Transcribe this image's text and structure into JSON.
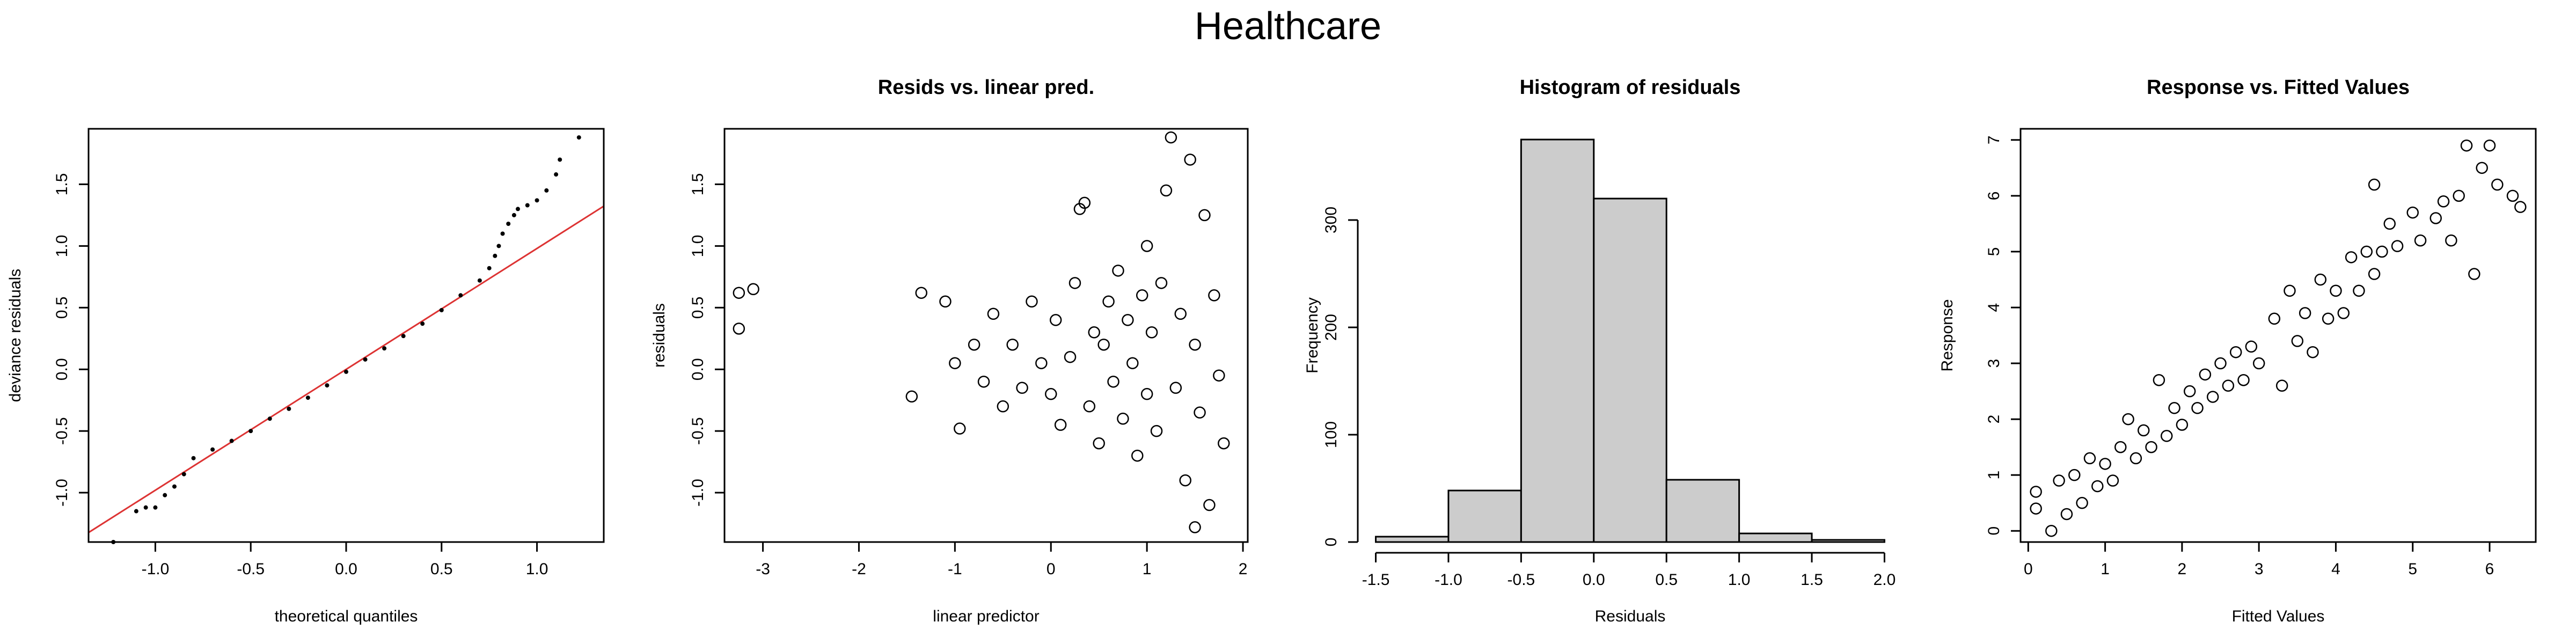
{
  "page_title": "Healthcare",
  "colors": {
    "reference_line": "#dd3333",
    "histogram_fill": "#cccccc",
    "ink": "#000000"
  },
  "chart_data": [
    {
      "type": "scatter",
      "title": "",
      "xlabel": "theoretical quantiles",
      "ylabel": "deviance residuals",
      "xlim": [
        -1.35,
        1.35
      ],
      "ylim": [
        -1.4,
        1.95
      ],
      "xticks": [
        -1.0,
        -0.5,
        0.0,
        0.5,
        1.0
      ],
      "xtick_labels": [
        "-1.0",
        "-0.5",
        "0.0",
        "0.5",
        "1.0"
      ],
      "yticks": [
        -1.0,
        -0.5,
        0.0,
        0.5,
        1.0,
        1.5
      ],
      "ytick_labels": [
        "-1.0",
        "-0.5",
        "0.0",
        "0.5",
        "1.0",
        "1.5"
      ],
      "marker": "dot",
      "points": [
        [
          -1.22,
          -1.4
        ],
        [
          -1.1,
          -1.15
        ],
        [
          -1.05,
          -1.12
        ],
        [
          -1.0,
          -1.12
        ],
        [
          -0.95,
          -1.02
        ],
        [
          -0.9,
          -0.95
        ],
        [
          -0.85,
          -0.85
        ],
        [
          -0.8,
          -0.72
        ],
        [
          -0.7,
          -0.65
        ],
        [
          -0.6,
          -0.58
        ],
        [
          -0.5,
          -0.5
        ],
        [
          -0.4,
          -0.4
        ],
        [
          -0.3,
          -0.32
        ],
        [
          -0.2,
          -0.23
        ],
        [
          -0.1,
          -0.13
        ],
        [
          0.0,
          -0.02
        ],
        [
          0.1,
          0.08
        ],
        [
          0.2,
          0.17
        ],
        [
          0.3,
          0.27
        ],
        [
          0.4,
          0.37
        ],
        [
          0.5,
          0.48
        ],
        [
          0.6,
          0.6
        ],
        [
          0.7,
          0.72
        ],
        [
          0.75,
          0.82
        ],
        [
          0.78,
          0.92
        ],
        [
          0.8,
          1.0
        ],
        [
          0.82,
          1.1
        ],
        [
          0.85,
          1.18
        ],
        [
          0.88,
          1.25
        ],
        [
          0.9,
          1.3
        ],
        [
          0.95,
          1.33
        ],
        [
          1.0,
          1.37
        ],
        [
          1.05,
          1.45
        ],
        [
          1.1,
          1.58
        ],
        [
          1.12,
          1.7
        ],
        [
          1.22,
          1.88
        ]
      ],
      "reference_line": {
        "intercept": 0.0,
        "slope": 0.98
      }
    },
    {
      "type": "scatter",
      "title": "Resids vs. linear pred.",
      "xlabel": "linear predictor",
      "ylabel": "residuals",
      "xlim": [
        -3.4,
        2.05
      ],
      "ylim": [
        -1.4,
        1.95
      ],
      "xticks": [
        -3,
        -2,
        -1,
        0,
        1,
        2
      ],
      "xtick_labels": [
        "-3",
        "-2",
        "-1",
        "0",
        "1",
        "2"
      ],
      "yticks": [
        -1.0,
        -0.5,
        0.0,
        0.5,
        1.0,
        1.5
      ],
      "ytick_labels": [
        "-1.0",
        "-0.5",
        "0.0",
        "0.5",
        "1.0",
        "1.5"
      ],
      "marker": "circle",
      "points": [
        [
          -3.25,
          0.62
        ],
        [
          -3.25,
          0.33
        ],
        [
          -3.1,
          0.65
        ],
        [
          -1.45,
          -0.22
        ],
        [
          -1.35,
          0.62
        ],
        [
          -1.1,
          0.55
        ],
        [
          -1.0,
          0.05
        ],
        [
          -0.95,
          -0.48
        ],
        [
          -0.8,
          0.2
        ],
        [
          -0.7,
          -0.1
        ],
        [
          -0.6,
          0.45
        ],
        [
          -0.5,
          -0.3
        ],
        [
          -0.4,
          0.2
        ],
        [
          -0.3,
          -0.15
        ],
        [
          -0.2,
          0.55
        ],
        [
          -0.1,
          0.05
        ],
        [
          0.0,
          -0.2
        ],
        [
          0.05,
          0.4
        ],
        [
          0.1,
          -0.45
        ],
        [
          0.2,
          0.1
        ],
        [
          0.25,
          0.7
        ],
        [
          0.3,
          1.3
        ],
        [
          0.35,
          1.35
        ],
        [
          0.4,
          -0.3
        ],
        [
          0.45,
          0.3
        ],
        [
          0.5,
          -0.6
        ],
        [
          0.55,
          0.2
        ],
        [
          0.6,
          0.55
        ],
        [
          0.65,
          -0.1
        ],
        [
          0.7,
          0.8
        ],
        [
          0.75,
          -0.4
        ],
        [
          0.8,
          0.4
        ],
        [
          0.85,
          0.05
        ],
        [
          0.9,
          -0.7
        ],
        [
          0.95,
          0.6
        ],
        [
          1.0,
          -0.2
        ],
        [
          1.0,
          1.0
        ],
        [
          1.05,
          0.3
        ],
        [
          1.1,
          -0.5
        ],
        [
          1.15,
          0.7
        ],
        [
          1.2,
          1.45
        ],
        [
          1.25,
          1.88
        ],
        [
          1.3,
          -0.15
        ],
        [
          1.35,
          0.45
        ],
        [
          1.4,
          -0.9
        ],
        [
          1.45,
          1.7
        ],
        [
          1.5,
          0.2
        ],
        [
          1.55,
          -0.35
        ],
        [
          1.6,
          1.25
        ],
        [
          1.65,
          -1.1
        ],
        [
          1.7,
          0.6
        ],
        [
          1.75,
          -0.05
        ],
        [
          1.8,
          -0.6
        ],
        [
          1.5,
          -1.28
        ]
      ]
    },
    {
      "type": "bar",
      "title": "Histogram of residuals",
      "xlabel": "Residuals",
      "ylabel": "Frequency",
      "xlim": [
        -1.55,
        2.05
      ],
      "ylim": [
        0,
        385
      ],
      "xticks": [
        -1.5,
        -1.0,
        -0.5,
        0.0,
        0.5,
        1.0,
        1.5,
        2.0
      ],
      "xtick_labels": [
        "-1.5",
        "-1.0",
        "-0.5",
        "0.0",
        "0.5",
        "1.0",
        "1.5",
        "2.0"
      ],
      "yticks": [
        0,
        100,
        200,
        300
      ],
      "ytick_labels": [
        "0",
        "100",
        "200",
        "300"
      ],
      "bin_edges": [
        -1.5,
        -1.0,
        -0.5,
        0.0,
        0.5,
        1.0,
        1.5,
        2.0
      ],
      "values": [
        5,
        48,
        375,
        320,
        58,
        8,
        2
      ]
    },
    {
      "type": "scatter",
      "title": "Response vs. Fitted Values",
      "xlabel": "Fitted Values",
      "ylabel": "Response",
      "xlim": [
        -0.1,
        6.6
      ],
      "ylim": [
        -0.2,
        7.2
      ],
      "xticks": [
        0,
        1,
        2,
        3,
        4,
        5,
        6
      ],
      "xtick_labels": [
        "0",
        "1",
        "2",
        "3",
        "4",
        "5",
        "6"
      ],
      "yticks": [
        0,
        1,
        2,
        3,
        4,
        5,
        6,
        7
      ],
      "ytick_labels": [
        "0",
        "1",
        "2",
        "3",
        "4",
        "5",
        "6",
        "7"
      ],
      "marker": "circle",
      "points": [
        [
          0.1,
          0.4
        ],
        [
          0.1,
          0.7
        ],
        [
          0.3,
          0.0
        ],
        [
          0.4,
          0.9
        ],
        [
          0.5,
          0.3
        ],
        [
          0.6,
          1.0
        ],
        [
          0.7,
          0.5
        ],
        [
          0.8,
          1.3
        ],
        [
          0.9,
          0.8
        ],
        [
          1.0,
          1.2
        ],
        [
          1.1,
          0.9
        ],
        [
          1.2,
          1.5
        ],
        [
          1.3,
          2.0
        ],
        [
          1.4,
          1.3
        ],
        [
          1.5,
          1.8
        ],
        [
          1.6,
          1.5
        ],
        [
          1.7,
          2.7
        ],
        [
          1.8,
          1.7
        ],
        [
          1.9,
          2.2
        ],
        [
          2.0,
          1.9
        ],
        [
          2.1,
          2.5
        ],
        [
          2.2,
          2.2
        ],
        [
          2.3,
          2.8
        ],
        [
          2.4,
          2.4
        ],
        [
          2.5,
          3.0
        ],
        [
          2.6,
          2.6
        ],
        [
          2.7,
          3.2
        ],
        [
          2.8,
          2.7
        ],
        [
          2.9,
          3.3
        ],
        [
          3.0,
          3.0
        ],
        [
          3.2,
          3.8
        ],
        [
          3.3,
          2.6
        ],
        [
          3.4,
          4.3
        ],
        [
          3.5,
          3.4
        ],
        [
          3.6,
          3.9
        ],
        [
          3.7,
          3.2
        ],
        [
          3.8,
          4.5
        ],
        [
          3.9,
          3.8
        ],
        [
          4.0,
          4.3
        ],
        [
          4.1,
          3.9
        ],
        [
          4.2,
          4.9
        ],
        [
          4.3,
          4.3
        ],
        [
          4.4,
          5.0
        ],
        [
          4.5,
          4.6
        ],
        [
          4.5,
          6.2
        ],
        [
          4.6,
          5.0
        ],
        [
          4.7,
          5.5
        ],
        [
          4.8,
          5.1
        ],
        [
          5.0,
          5.7
        ],
        [
          5.1,
          5.2
        ],
        [
          5.3,
          5.6
        ],
        [
          5.4,
          5.9
        ],
        [
          5.5,
          5.2
        ],
        [
          5.6,
          6.0
        ],
        [
          5.7,
          6.9
        ],
        [
          5.8,
          4.6
        ],
        [
          5.9,
          6.5
        ],
        [
          6.0,
          6.9
        ],
        [
          6.1,
          6.2
        ],
        [
          6.3,
          6.0
        ],
        [
          6.4,
          5.8
        ]
      ]
    }
  ]
}
